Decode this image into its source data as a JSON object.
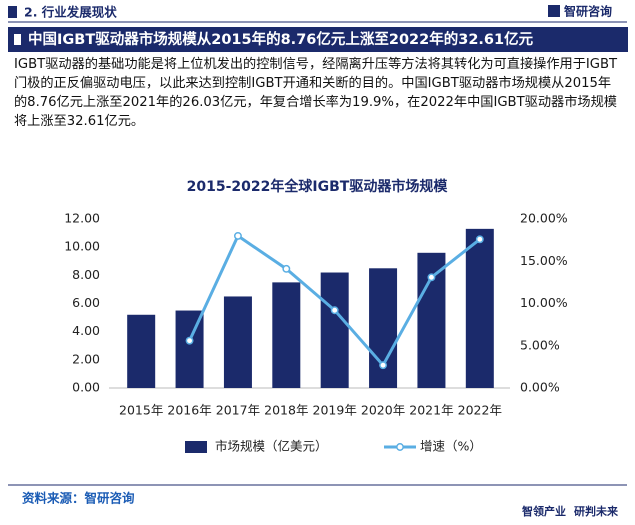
{
  "header": {
    "section": "2. 行业发展现状",
    "logo": "智研咨询",
    "title": "中国IGBT驱动器市场规模从2015年的8.76亿元上涨至2022年的32.61亿元"
  },
  "paragraph": "IGBT驱动器的基础功能是将上位机发出的控制信号，经隔离升压等方法将其转化为可直接操作用于IGBT门极的正反偏驱动电压，以此来达到控制IGBT开通和关断的目的。中国IGBT驱动器市场规模从2015年的8.76亿元上涨至2021年的26.03亿元，年复合增长率为19.9%，在2022年中国IGBT驱动器市场规模将上涨至32.61亿元。",
  "footer": {
    "source": "资料来源：智研咨询",
    "slogan1": "智领产业",
    "slogan2": "研判未来"
  },
  "chart_data": {
    "type": "bar",
    "title": "2015-2022年全球IGBT驱动器市场规模",
    "categories": [
      "2015年",
      "2016年",
      "2017年",
      "2018年",
      "2019年",
      "2020年",
      "2021年",
      "2022年"
    ],
    "series": [
      {
        "name": "市场规模（亿美元）",
        "color": "#1b2a6b",
        "type": "bar",
        "values": [
          5.2,
          5.5,
          6.5,
          7.5,
          8.2,
          8.5,
          9.6,
          11.3
        ]
      },
      {
        "name": "增速（%）",
        "color": "#5aaee3",
        "type": "line",
        "axis": "y2",
        "values": [
          null,
          5.6,
          18.0,
          14.1,
          9.2,
          2.7,
          13.1,
          17.6
        ]
      }
    ],
    "ylim": [
      0,
      12
    ],
    "yticks": [
      {
        "value": 0,
        "label": "0.00"
      },
      {
        "value": 2,
        "label": "2.00"
      },
      {
        "value": 4,
        "label": "4.00"
      },
      {
        "value": 6,
        "label": "6.00"
      },
      {
        "value": 8,
        "label": "8.00"
      },
      {
        "value": 10,
        "label": "10.00"
      },
      {
        "value": 12,
        "label": "12.00"
      }
    ],
    "y2lim": [
      0,
      20
    ],
    "y2ticks": [
      {
        "value": 0,
        "label": "0.00%"
      },
      {
        "value": 5,
        "label": "5.00%"
      },
      {
        "value": 10,
        "label": "10.00%"
      },
      {
        "value": 15,
        "label": "15.00%"
      },
      {
        "value": 20,
        "label": "20.00%"
      }
    ],
    "legend": "bottom"
  }
}
